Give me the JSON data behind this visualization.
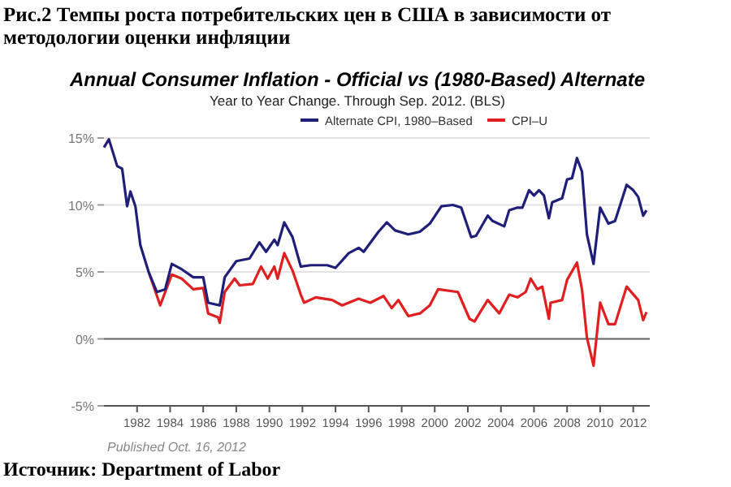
{
  "chart_data": {
    "type": "line",
    "title": "Рис.2 Темпы роста потребительских цен в США в зависимости от методологии оценки инфляции",
    "subtitle": "Annual Consumer Inflation - Official vs (1980-Based) Alternate",
    "annotations": [
      "Year to Year Change. Through Sep. 2012.   (BLS)",
      "Published Oct. 16, 2012",
      "Источник: Department of Labor"
    ],
    "series": [
      {
        "name": "Alternate CPI, 1980–Based",
        "color": "#1f1f7a",
        "x": [
          1980.0,
          1980.3,
          1980.8,
          1981.1,
          1981.4,
          1981.6,
          1981.9,
          1982.2,
          1982.7,
          1983.2,
          1983.7,
          1984.1,
          1984.7,
          1985.4,
          1986.0,
          1986.3,
          1987.0,
          1987.3,
          1988.0,
          1988.8,
          1989.4,
          1989.8,
          1990.3,
          1990.5,
          1990.9,
          1991.4,
          1991.9,
          1992.5,
          1993.5,
          1994.0,
          1994.8,
          1995.4,
          1995.7,
          1996.6,
          1997.1,
          1997.6,
          1998.4,
          1999.1,
          1999.7,
          2000.4,
          2001.1,
          2001.6,
          2002.2,
          2002.5,
          2003.2,
          2003.5,
          2004.2,
          2004.5,
          2005.0,
          2005.3,
          2005.7,
          2006.0,
          2006.3,
          2006.6,
          2006.9,
          2007.1,
          2007.7,
          2008.0,
          2008.3,
          2008.6,
          2008.9,
          2009.2,
          2009.6,
          2010.0,
          2010.5,
          2010.9,
          2011.6,
          2012.0,
          2012.3,
          2012.6,
          2012.8
        ],
        "values": [
          14.3,
          14.9,
          12.9,
          12.7,
          9.9,
          11.0,
          9.9,
          7.0,
          5.0,
          3.5,
          3.7,
          5.6,
          5.2,
          4.6,
          4.6,
          2.7,
          2.5,
          4.6,
          5.8,
          6.0,
          7.2,
          6.5,
          7.4,
          7.0,
          8.7,
          7.6,
          5.4,
          5.5,
          5.5,
          5.3,
          6.4,
          6.8,
          6.5,
          8.0,
          8.7,
          8.1,
          7.8,
          8.0,
          8.6,
          9.9,
          10.0,
          9.8,
          7.6,
          7.7,
          9.2,
          8.8,
          8.4,
          9.6,
          9.8,
          9.8,
          11.1,
          10.7,
          11.1,
          10.7,
          9.0,
          10.2,
          10.5,
          11.9,
          12.0,
          13.5,
          12.5,
          7.8,
          5.6,
          9.8,
          8.6,
          8.8,
          11.5,
          11.1,
          10.6,
          9.2,
          9.6
        ]
      },
      {
        "name": "CPI–U",
        "color": "#e02020",
        "x": [
          1982.7,
          1983.4,
          1984.1,
          1984.7,
          1985.4,
          1986.0,
          1986.3,
          1986.9,
          1987.0,
          1987.3,
          1987.9,
          1988.2,
          1989.0,
          1989.5,
          1989.9,
          1990.3,
          1990.5,
          1990.9,
          1991.4,
          1991.9,
          1992.1,
          1992.8,
          1993.8,
          1994.4,
          1995.4,
          1996.1,
          1996.9,
          1997.4,
          1997.8,
          1998.4,
          1999.1,
          1999.7,
          2000.2,
          2001.4,
          2002.1,
          2002.4,
          2003.2,
          2003.9,
          2004.5,
          2005.0,
          2005.5,
          2005.8,
          2006.2,
          2006.5,
          2006.9,
          2007.0,
          2007.7,
          2008.0,
          2008.6,
          2008.9,
          2009.2,
          2009.6,
          2010.0,
          2010.5,
          2010.9,
          2011.6,
          2012.3,
          2012.6,
          2012.8
        ],
        "values": [
          5.0,
          2.5,
          4.8,
          4.5,
          3.7,
          3.8,
          1.9,
          1.6,
          1.2,
          3.5,
          4.5,
          4.0,
          4.1,
          5.4,
          4.5,
          5.4,
          4.5,
          6.4,
          5.1,
          3.3,
          2.7,
          3.1,
          2.9,
          2.5,
          3.0,
          2.7,
          3.2,
          2.3,
          2.9,
          1.7,
          1.9,
          2.5,
          3.7,
          3.5,
          1.5,
          1.3,
          2.9,
          1.9,
          3.3,
          3.1,
          3.5,
          4.5,
          3.7,
          3.9,
          1.5,
          2.7,
          2.9,
          4.4,
          5.7,
          3.7,
          0.1,
          -2.0,
          2.7,
          1.1,
          1.1,
          3.9,
          2.9,
          1.4,
          2.0
        ]
      }
    ],
    "xlim": [
      1980,
      2013
    ],
    "xticks": [
      1982,
      1984,
      1986,
      1988,
      1990,
      1992,
      1994,
      1996,
      1998,
      2000,
      2002,
      2004,
      2006,
      2008,
      2010,
      2012
    ],
    "ylim": [
      -5,
      15
    ],
    "yticks": [
      {
        "value": -5,
        "label": "-5%"
      },
      {
        "value": 0,
        "label": "0%"
      },
      {
        "value": 5,
        "label": "5%"
      },
      {
        "value": 10,
        "label": "10%"
      },
      {
        "value": 15,
        "label": "15%"
      }
    ],
    "grid": "y",
    "legend": "top",
    "line_style": "solid",
    "marker": "none",
    "ref_lines": [
      {
        "axis": "y",
        "value": 0,
        "color": "#666666"
      }
    ]
  }
}
